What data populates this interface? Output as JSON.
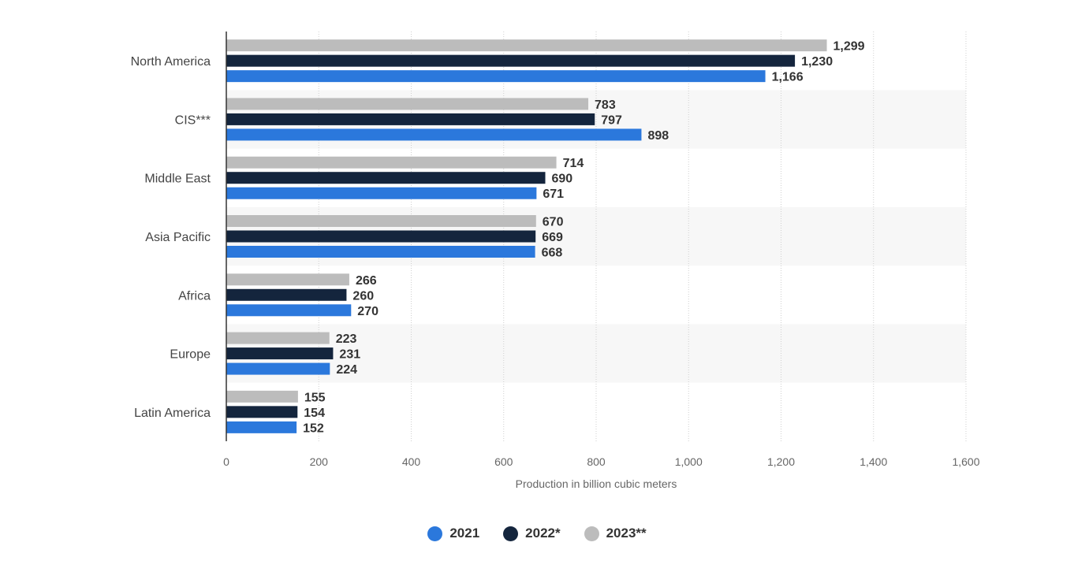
{
  "chart_data": {
    "type": "bar",
    "orientation": "horizontal",
    "categories": [
      "North America",
      "CIS***",
      "Middle East",
      "Asia Pacific",
      "Africa",
      "Europe",
      "Latin America"
    ],
    "series": [
      {
        "name": "2023**",
        "color": "#bcbcbc",
        "values": [
          1299,
          783,
          714,
          670,
          266,
          223,
          155
        ],
        "labels": [
          "1,299",
          "783",
          "714",
          "670",
          "266",
          "223",
          "155"
        ]
      },
      {
        "name": "2022*",
        "color": "#14253d",
        "values": [
          1230,
          797,
          690,
          669,
          260,
          231,
          154
        ],
        "labels": [
          "1,230",
          "797",
          "690",
          "669",
          "260",
          "231",
          "154"
        ]
      },
      {
        "name": "2021",
        "color": "#2b78dc",
        "values": [
          1166,
          898,
          671,
          668,
          270,
          224,
          152
        ],
        "labels": [
          "1,166",
          "898",
          "671",
          "668",
          "270",
          "224",
          "152"
        ]
      }
    ],
    "xlabel": "Production in billion cubic meters",
    "xlim": [
      0,
      1600
    ],
    "xticks": [
      0,
      200,
      400,
      600,
      800,
      1000,
      1200,
      1400,
      1600
    ],
    "xtick_labels": [
      "0",
      "200",
      "400",
      "600",
      "800",
      "1,000",
      "1,200",
      "1,400",
      "1,600"
    ],
    "grid": true,
    "legend_position": "bottom-center",
    "legend": [
      {
        "label": "2021",
        "color": "#2b78dc"
      },
      {
        "label": "2022*",
        "color": "#14253d"
      },
      {
        "label": "2023**",
        "color": "#bcbcbc"
      }
    ]
  }
}
